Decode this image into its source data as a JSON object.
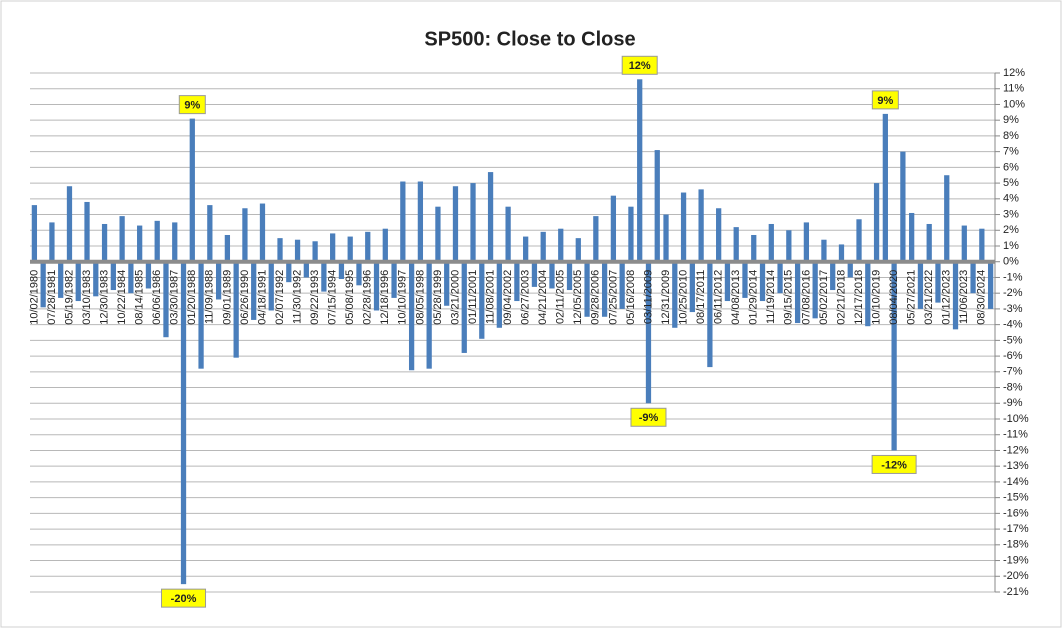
{
  "chart_data": {
    "type": "bar",
    "title": "SP500: Close to Close",
    "color": "#4a7ebb",
    "grid": true,
    "y_axis_side": "right",
    "categories": [
      "10/02/1980",
      null,
      "07/28/1981",
      null,
      "05/19/1982",
      null,
      "03/10/1983",
      null,
      "12/30/1983",
      null,
      "10/22/1984",
      null,
      "08/14/1985",
      null,
      "06/06/1986",
      null,
      "03/30/1987",
      null,
      "01/20/1988",
      null,
      "11/09/1988",
      null,
      "09/01/1989",
      null,
      "06/26/1990",
      null,
      "04/18/1991",
      null,
      "02/07/1992",
      null,
      "11/30/1992",
      null,
      "09/22/1993",
      null,
      "07/15/1994",
      null,
      "05/08/1995",
      null,
      "02/28/1996",
      null,
      "12/18/1996",
      null,
      "10/10/1997",
      null,
      "08/05/1998",
      null,
      "05/28/1999",
      null,
      "03/21/2000",
      null,
      "01/11/2001",
      null,
      "11/08/2001",
      null,
      "09/04/2002",
      null,
      "06/27/2003",
      null,
      "04/21/2004",
      null,
      "02/11/2005",
      null,
      "12/05/2005",
      null,
      "09/28/2006",
      null,
      "07/25/2007",
      null,
      "05/16/2008",
      null,
      "03/11/2009",
      null,
      "12/31/2009",
      null,
      "10/25/2010",
      null,
      "08/17/2011",
      null,
      "06/11/2012",
      null,
      "04/08/2013",
      null,
      "01/29/2014",
      null,
      "11/19/2014",
      null,
      "09/15/2015",
      null,
      "07/08/2016",
      null,
      "05/02/2017",
      null,
      "02/21/2018",
      null,
      "12/17/2018",
      null,
      "10/10/2019",
      null,
      "08/04/2020",
      null,
      "05/27/2021",
      null,
      "03/21/2022",
      null,
      "01/12/2023",
      null,
      "11/06/2023",
      null,
      "08/30/2024",
      null
    ],
    "values": [
      3.6,
      -2.9,
      2.5,
      -2.3,
      4.8,
      -2.5,
      3.8,
      -2.2,
      2.4,
      -1.8,
      2.9,
      -2.0,
      2.3,
      -1.7,
      2.6,
      -4.8,
      2.5,
      -20.5,
      9.1,
      -6.8,
      3.6,
      -2.4,
      1.7,
      -6.1,
      3.4,
      -3.7,
      3.7,
      -3.1,
      1.5,
      -1.3,
      1.4,
      -1.0,
      1.3,
      -1.9,
      1.8,
      -1.1,
      1.6,
      -1.5,
      1.9,
      -3.1,
      2.1,
      -2.3,
      5.1,
      -6.9,
      5.1,
      -6.8,
      3.5,
      -2.8,
      4.8,
      -5.8,
      5.0,
      -4.9,
      5.7,
      -4.2,
      3.5,
      -2.5,
      1.6,
      -1.6,
      1.9,
      -1.7,
      2.1,
      -1.8,
      1.5,
      -3.5,
      2.9,
      -3.5,
      4.2,
      -3.0,
      3.5,
      11.6,
      -9.0,
      7.1,
      3.0,
      -4.2,
      4.4,
      -3.2,
      4.6,
      -6.7,
      3.4,
      -2.5,
      2.2,
      -2.3,
      1.7,
      -2.5,
      2.4,
      -2.0,
      2.0,
      -3.9,
      2.5,
      -3.6,
      1.4,
      -1.8,
      1.1,
      -1.0,
      2.7,
      -4.1,
      5.0,
      9.4,
      -12.0,
      7.0,
      3.1,
      -3.0,
      2.4,
      -2.6,
      5.5,
      -4.3,
      2.3,
      -2.0,
      2.1,
      -3.0
    ],
    "value_labels": [
      null,
      null,
      null,
      null,
      null,
      null,
      null,
      null,
      null,
      null,
      null,
      null,
      null,
      null,
      null,
      null,
      null,
      "-20%",
      "9%",
      null,
      null,
      null,
      null,
      null,
      null,
      null,
      null,
      null,
      null,
      null,
      null,
      null,
      null,
      null,
      null,
      null,
      null,
      null,
      null,
      null,
      null,
      null,
      null,
      null,
      null,
      null,
      null,
      null,
      null,
      null,
      null,
      null,
      null,
      null,
      null,
      null,
      null,
      null,
      null,
      null,
      null,
      null,
      null,
      null,
      null,
      null,
      null,
      null,
      null,
      "12%",
      "-9%",
      null,
      null,
      null,
      null,
      null,
      null,
      null,
      null,
      null,
      null,
      null,
      null,
      null,
      null,
      null,
      null,
      null,
      null,
      null,
      null,
      null,
      null,
      null,
      null,
      null,
      null,
      "9%",
      "-12%",
      null,
      null,
      null,
      null,
      null,
      null,
      null,
      null,
      null,
      null,
      null
    ],
    "ylim": [
      -21,
      12
    ],
    "yticks": [
      {
        "value": 12,
        "label": "12%"
      },
      {
        "value": 11,
        "label": "11%"
      },
      {
        "value": 10,
        "label": "10%"
      },
      {
        "value": 9,
        "label": "9%"
      },
      {
        "value": 8,
        "label": "8%"
      },
      {
        "value": 7,
        "label": "7%"
      },
      {
        "value": 6,
        "label": "6%"
      },
      {
        "value": 5,
        "label": "5%"
      },
      {
        "value": 4,
        "label": "4%"
      },
      {
        "value": 3,
        "label": "3%"
      },
      {
        "value": 2,
        "label": "2%"
      },
      {
        "value": 1,
        "label": "1%"
      },
      {
        "value": 0,
        "label": "0%"
      },
      {
        "value": -1,
        "label": "-1%"
      },
      {
        "value": -2,
        "label": "-2%"
      },
      {
        "value": -3,
        "label": "-3%"
      },
      {
        "value": -4,
        "label": "-4%"
      },
      {
        "value": -5,
        "label": "-5%"
      },
      {
        "value": -6,
        "label": "-6%"
      },
      {
        "value": -7,
        "label": "-7%"
      },
      {
        "value": -8,
        "label": "-8%"
      },
      {
        "value": -9,
        "label": "-9%"
      },
      {
        "value": -10,
        "label": "-10%"
      },
      {
        "value": -11,
        "label": "-11%"
      },
      {
        "value": -12,
        "label": "-12%"
      },
      {
        "value": -13,
        "label": "-13%"
      },
      {
        "value": -14,
        "label": "-14%"
      },
      {
        "value": -15,
        "label": "-15%"
      },
      {
        "value": -16,
        "label": "-16%"
      },
      {
        "value": -17,
        "label": "-17%"
      },
      {
        "value": -18,
        "label": "-18%"
      },
      {
        "value": -19,
        "label": "-19%"
      },
      {
        "value": -20,
        "label": "-20%"
      },
      {
        "value": -21,
        "label": "-21%"
      }
    ]
  }
}
